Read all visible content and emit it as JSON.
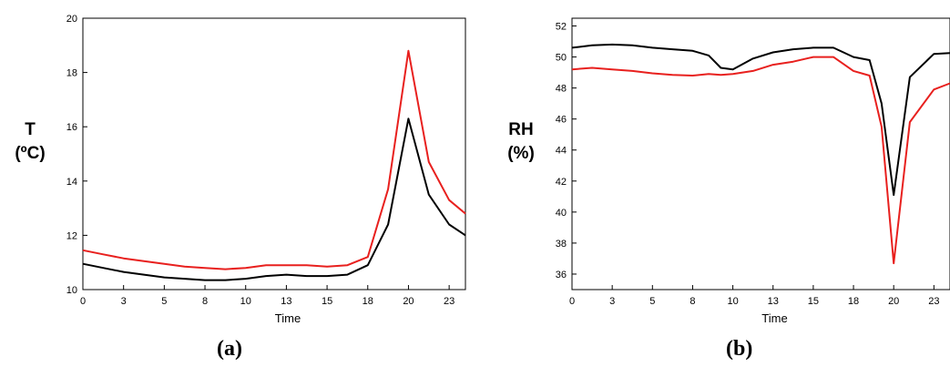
{
  "chart_data": [
    {
      "panel": "a",
      "type": "line",
      "caption": "(a)",
      "ylabel": [
        "T",
        "(ºC)"
      ],
      "xlabel": "Time",
      "xlim": [
        0,
        23.5
      ],
      "ylim": [
        10,
        20
      ],
      "xticks": [
        0,
        2.5,
        5,
        7.5,
        10,
        12.5,
        15,
        17.5,
        20,
        22.5
      ],
      "xtick_labels": [
        "0",
        "3",
        "5",
        "8",
        "10",
        "13",
        "15",
        "18",
        "20",
        "23"
      ],
      "yticks": [
        10,
        12,
        14,
        16,
        18,
        20
      ],
      "series": [
        {
          "color": "#e8201e",
          "x": [
            0,
            1.25,
            2.5,
            3.75,
            5,
            6.25,
            7.5,
            8.75,
            10,
            11.25,
            12.5,
            13.75,
            15,
            16.25,
            17.5,
            18.75,
            20,
            21.25,
            22.5,
            23.5
          ],
          "y": [
            11.45,
            11.3,
            11.15,
            11.05,
            10.95,
            10.85,
            10.8,
            10.75,
            10.8,
            10.9,
            10.9,
            10.9,
            10.85,
            10.9,
            11.2,
            13.7,
            18.8,
            14.7,
            13.3,
            12.8
          ]
        },
        {
          "color": "#000000",
          "x": [
            0,
            1.25,
            2.5,
            3.75,
            5,
            6.25,
            7.5,
            8.75,
            10,
            11.25,
            12.5,
            13.75,
            15,
            16.25,
            17.5,
            18.75,
            20,
            21.25,
            22.5,
            23.5
          ],
          "y": [
            10.95,
            10.8,
            10.65,
            10.55,
            10.45,
            10.4,
            10.35,
            10.35,
            10.4,
            10.5,
            10.55,
            10.5,
            10.5,
            10.55,
            10.9,
            12.4,
            16.3,
            13.5,
            12.4,
            12.0
          ]
        }
      ]
    },
    {
      "panel": "b",
      "type": "line",
      "caption": "(b)",
      "ylabel": [
        "RH",
        "(%)"
      ],
      "xlabel": "Time",
      "xlim": [
        0,
        23.5
      ],
      "ylim": [
        35,
        52.5
      ],
      "xticks": [
        0,
        2.5,
        5,
        7.5,
        10,
        12.5,
        15,
        17.5,
        20,
        22.5
      ],
      "xtick_labels": [
        "0",
        "3",
        "5",
        "8",
        "10",
        "13",
        "15",
        "18",
        "20",
        "23"
      ],
      "yticks": [
        36,
        38,
        40,
        42,
        44,
        46,
        48,
        50,
        52
      ],
      "series": [
        {
          "color": "#000000",
          "x": [
            0,
            1.25,
            2.5,
            3.75,
            5,
            6.25,
            7.5,
            8.5,
            9.25,
            10,
            11.25,
            12.5,
            13.75,
            15,
            16.25,
            17.5,
            18.5,
            19.25,
            20,
            21,
            22.5,
            23.5
          ],
          "y": [
            50.6,
            50.75,
            50.8,
            50.75,
            50.6,
            50.5,
            50.4,
            50.1,
            49.3,
            49.2,
            49.9,
            50.3,
            50.5,
            50.6,
            50.6,
            50.0,
            49.8,
            47.0,
            41.1,
            48.7,
            50.2,
            50.25
          ]
        },
        {
          "color": "#e8201e",
          "x": [
            0,
            1.25,
            2.5,
            3.75,
            5,
            6.25,
            7.5,
            8.5,
            9.25,
            10,
            11.25,
            12.5,
            13.75,
            15,
            16.25,
            17.5,
            18.5,
            19.25,
            20,
            21,
            22.5,
            23.5
          ],
          "y": [
            49.2,
            49.3,
            49.2,
            49.1,
            48.95,
            48.85,
            48.8,
            48.9,
            48.85,
            48.9,
            49.1,
            49.5,
            49.7,
            50.0,
            50.0,
            49.1,
            48.8,
            45.5,
            36.7,
            45.8,
            47.9,
            48.3
          ]
        }
      ]
    }
  ]
}
